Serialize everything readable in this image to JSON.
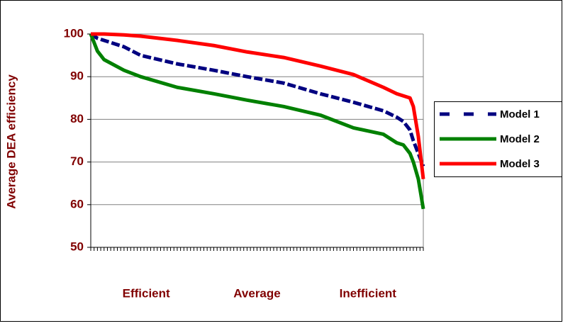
{
  "chart_data": {
    "type": "line",
    "y_label": "Average DEA efficiency",
    "x_group_labels": [
      "Efficient",
      "Average",
      "Inefficient"
    ],
    "x": [
      0,
      2,
      4,
      10,
      15,
      26,
      37,
      47,
      58,
      69,
      79,
      88,
      92,
      94,
      96,
      97,
      98.5,
      100
    ],
    "xlim": [
      0,
      100
    ],
    "ylim": [
      50,
      100
    ],
    "yticks": [
      50,
      60,
      70,
      80,
      90,
      100
    ],
    "grid": true,
    "legend": "right",
    "series": [
      {
        "name": "Model 1",
        "color": "#000080",
        "dashed": true,
        "values": [
          100,
          99,
          98.5,
          97,
          95,
          93,
          91.5,
          90,
          88.5,
          86,
          84,
          82,
          80.5,
          79.5,
          77.5,
          75,
          72,
          69
        ]
      },
      {
        "name": "Model 2",
        "color": "#008000",
        "dashed": false,
        "values": [
          100,
          96,
          94,
          91.5,
          90,
          87.5,
          86,
          84.5,
          83,
          81,
          78,
          76.5,
          74.5,
          74,
          72,
          70,
          66,
          59
        ]
      },
      {
        "name": "Model 3",
        "color": "#ff0000",
        "dashed": false,
        "values": [
          100,
          100,
          100,
          99.8,
          99.5,
          98.5,
          97.3,
          95.8,
          94.5,
          92.5,
          90.5,
          87.5,
          86,
          85.5,
          85,
          83,
          76,
          66
        ]
      }
    ]
  }
}
